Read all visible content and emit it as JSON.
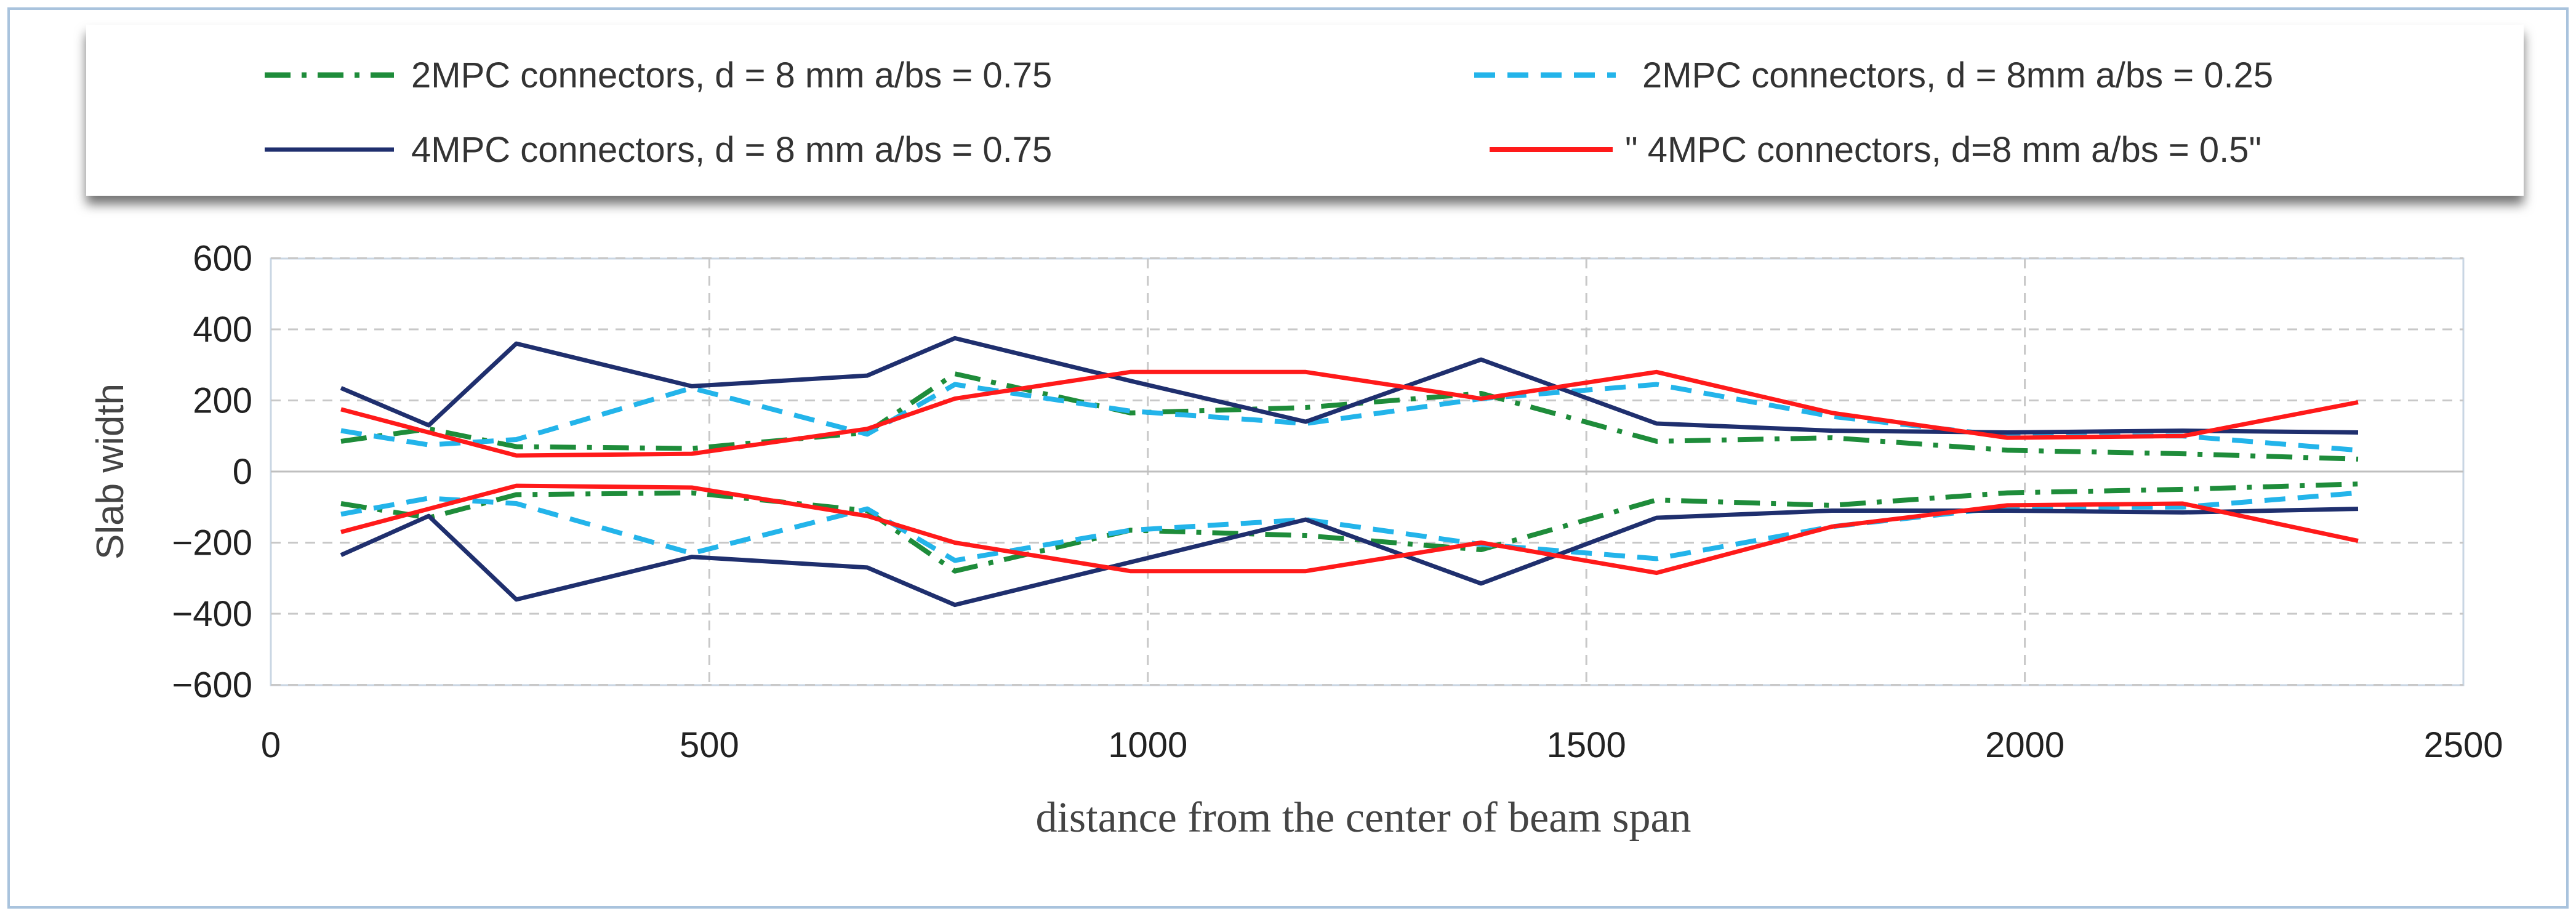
{
  "chart_data": {
    "type": "line",
    "title": "",
    "xlabel": "distance from the center of beam span",
    "ylabel": "Slab width",
    "xlim": [
      0,
      2500
    ],
    "ylim": [
      -600,
      600
    ],
    "x_ticks": [
      0,
      500,
      1000,
      1500,
      2000,
      2500
    ],
    "x_tick_labels": [
      "0",
      "500",
      "1000",
      "1500",
      "2000",
      "2500"
    ],
    "y_ticks": [
      600,
      400,
      200,
      0,
      -200,
      -400,
      -600
    ],
    "y_tick_labels": [
      "600",
      "400",
      "200",
      "0",
      "−200",
      "−400",
      "−600"
    ],
    "grid": true,
    "legend_position": "top",
    "series": [
      {
        "name": "2MPC connectors, d = 8 mm a/bs = 0.75",
        "color": "#1e8c3a",
        "style": "dashdot",
        "x": [
          80,
          180,
          280,
          480,
          680,
          780,
          980,
          1180,
          1380,
          1580,
          1780,
          1980,
          2180,
          2380
        ],
        "upper": [
          85,
          120,
          70,
          65,
          110,
          275,
          165,
          180,
          220,
          85,
          95,
          60,
          50,
          35
        ],
        "lower": [
          -90,
          -130,
          -65,
          -60,
          -110,
          -280,
          -165,
          -180,
          -220,
          -80,
          -95,
          -60,
          -50,
          -35
        ]
      },
      {
        "name": "2MPC connectors, d = 8mm a/bs = 0.25",
        "color": "#23b4ea",
        "style": "dashed",
        "x": [
          80,
          180,
          280,
          480,
          680,
          780,
          980,
          1180,
          1380,
          1580,
          1780,
          1980,
          2180,
          2380
        ],
        "upper": [
          115,
          75,
          90,
          235,
          105,
          245,
          170,
          135,
          205,
          245,
          155,
          100,
          100,
          60
        ],
        "lower": [
          -120,
          -75,
          -90,
          -230,
          -105,
          -250,
          -165,
          -135,
          -205,
          -245,
          -155,
          -100,
          -100,
          -60
        ]
      },
      {
        "name": "4MPC connectors, d = 8 mm a/bs = 0.75",
        "color": "#1f2f6e",
        "style": "solid",
        "x": [
          80,
          180,
          280,
          480,
          680,
          780,
          980,
          1180,
          1380,
          1580,
          1780,
          1980,
          2180,
          2380
        ],
        "upper": [
          235,
          130,
          360,
          240,
          270,
          375,
          255,
          140,
          315,
          135,
          115,
          110,
          115,
          110
        ],
        "lower": [
          -235,
          -125,
          -360,
          -240,
          -270,
          -375,
          -255,
          -135,
          -315,
          -130,
          -110,
          -110,
          -115,
          -105
        ]
      },
      {
        "name": "\" 4MPC connectors, d=8 mm a/bs = 0.5\"",
        "color": "#ff1a1a",
        "style": "solid",
        "x": [
          80,
          280,
          480,
          680,
          780,
          980,
          1180,
          1380,
          1580,
          1780,
          1980,
          2180,
          2380
        ],
        "upper": [
          175,
          45,
          50,
          120,
          205,
          280,
          280,
          205,
          280,
          165,
          95,
          100,
          195
        ],
        "lower": [
          -170,
          -40,
          -45,
          -125,
          -200,
          -280,
          -280,
          -200,
          -285,
          -155,
          -95,
          -90,
          -195
        ]
      }
    ]
  }
}
